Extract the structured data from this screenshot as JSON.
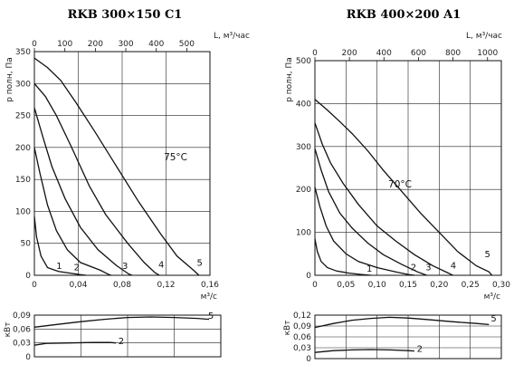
{
  "chart_data": [
    {
      "type": "line",
      "title": "RKB 300×150 C1",
      "xlabel": "м³/с",
      "x2label": "L, м³/час",
      "ylabel": "p полн, Па",
      "xlim": [
        0,
        0.16
      ],
      "x2lim": [
        0,
        576
      ],
      "ylim": [
        0,
        350
      ],
      "xticks": [
        "0",
        "0,04",
        "0,08",
        "0,12",
        "0,16"
      ],
      "xtick_values": [
        0,
        0.04,
        0.08,
        0.12,
        0.16
      ],
      "x2ticks": [
        "0",
        "100",
        "200",
        "300",
        "400",
        "500"
      ],
      "x2tick_values": [
        0,
        100,
        200,
        300,
        400,
        500
      ],
      "yticks": [
        "0",
        "50",
        "100",
        "150",
        "200",
        "250",
        "300",
        "350"
      ],
      "ytick_values": [
        0,
        50,
        100,
        150,
        200,
        250,
        300,
        350
      ],
      "grid": true,
      "annotation": "75°C",
      "annotation_at": [
        0.118,
        180
      ],
      "series": [
        {
          "name": "1",
          "label_at": [
            0.02,
            10
          ],
          "points": [
            [
              0,
              92
            ],
            [
              0.002,
              60
            ],
            [
              0.006,
              30
            ],
            [
              0.012,
              12
            ],
            [
              0.022,
              6
            ],
            [
              0.034,
              3
            ],
            [
              0.042,
              1
            ],
            [
              0.047,
              0
            ]
          ]
        },
        {
          "name": "2",
          "label_at": [
            0.036,
            8
          ],
          "points": [
            [
              0,
              200
            ],
            [
              0.005,
              160
            ],
            [
              0.012,
              110
            ],
            [
              0.02,
              70
            ],
            [
              0.03,
              40
            ],
            [
              0.042,
              20
            ],
            [
              0.06,
              8
            ],
            [
              0.068,
              1
            ],
            [
              0.07,
              0
            ]
          ]
        },
        {
          "name": "3",
          "label_at": [
            0.08,
            10
          ],
          "points": [
            [
              0,
              262
            ],
            [
              0.008,
              215
            ],
            [
              0.016,
              170
            ],
            [
              0.028,
              120
            ],
            [
              0.042,
              75
            ],
            [
              0.058,
              40
            ],
            [
              0.075,
              15
            ],
            [
              0.086,
              2
            ],
            [
              0.089,
              0
            ]
          ]
        },
        {
          "name": "4",
          "label_at": [
            0.113,
            12
          ],
          "points": [
            [
              0,
              300
            ],
            [
              0.01,
              280
            ],
            [
              0.02,
              250
            ],
            [
              0.034,
              200
            ],
            [
              0.05,
              140
            ],
            [
              0.065,
              95
            ],
            [
              0.085,
              50
            ],
            [
              0.1,
              20
            ],
            [
              0.11,
              4
            ],
            [
              0.114,
              0
            ]
          ]
        },
        {
          "name": "5",
          "label_at": [
            0.148,
            15
          ],
          "points": [
            [
              0,
              340
            ],
            [
              0.012,
              325
            ],
            [
              0.024,
              305
            ],
            [
              0.038,
              270
            ],
            [
              0.055,
              225
            ],
            [
              0.075,
              170
            ],
            [
              0.095,
              115
            ],
            [
              0.115,
              65
            ],
            [
              0.13,
              30
            ],
            [
              0.145,
              8
            ],
            [
              0.15,
              0
            ]
          ]
        }
      ]
    },
    {
      "type": "line",
      "xlim": [
        0,
        0.16
      ],
      "ylabel": "кВт",
      "ylim": [
        0,
        0.09
      ],
      "yticks": [
        "0",
        "0,03",
        "0,06",
        "0,09"
      ],
      "ytick_values": [
        0,
        0.03,
        0.06,
        0.09
      ],
      "grid": true,
      "series": [
        {
          "name": "5",
          "label_at": [
            0.149,
            0.082
          ],
          "points": [
            [
              0,
              0.064
            ],
            [
              0.02,
              0.07
            ],
            [
              0.04,
              0.076
            ],
            [
              0.06,
              0.081
            ],
            [
              0.08,
              0.085
            ],
            [
              0.1,
              0.086
            ],
            [
              0.12,
              0.085
            ],
            [
              0.14,
              0.083
            ],
            [
              0.15,
              0.081
            ]
          ]
        },
        {
          "name": "2",
          "label_at": [
            0.072,
            0.027
          ],
          "points": [
            [
              0,
              0.025
            ],
            [
              0.01,
              0.029
            ],
            [
              0.03,
              0.03
            ],
            [
              0.05,
              0.031
            ],
            [
              0.065,
              0.031
            ],
            [
              0.07,
              0.03
            ]
          ]
        }
      ]
    },
    {
      "type": "line",
      "title": "RKB 400×200 A1",
      "xlabel": "м³/с",
      "x2label": "L, м³/час",
      "ylabel": "p полн, Па",
      "xlim": [
        0,
        0.3
      ],
      "x2lim": [
        0,
        1080
      ],
      "ylim": [
        0,
        500
      ],
      "xticks": [
        "0",
        "0,05",
        "0,10",
        "0,15",
        "0,20",
        "0,25",
        "0,30"
      ],
      "xtick_values": [
        0,
        0.05,
        0.1,
        0.15,
        0.2,
        0.25,
        0.3
      ],
      "x2ticks": [
        "0",
        "200",
        "400",
        "600",
        "800",
        "1000"
      ],
      "x2tick_values": [
        0,
        200,
        400,
        600,
        800,
        1000
      ],
      "yticks": [
        "0",
        "100",
        "200",
        "300",
        "400",
        "500"
      ],
      "ytick_values": [
        0,
        100,
        200,
        300,
        400,
        500
      ],
      "grid": true,
      "annotation": "70°C",
      "annotation_at": [
        0.118,
        205
      ],
      "series": [
        {
          "name": "1",
          "label_at": [
            0.083,
            8
          ],
          "points": [
            [
              0,
              85
            ],
            [
              0.004,
              55
            ],
            [
              0.01,
              32
            ],
            [
              0.02,
              18
            ],
            [
              0.035,
              10
            ],
            [
              0.055,
              5
            ],
            [
              0.075,
              2
            ],
            [
              0.09,
              0
            ]
          ]
        },
        {
          "name": "2",
          "label_at": [
            0.154,
            12
          ],
          "points": [
            [
              0,
              205
            ],
            [
              0.008,
              160
            ],
            [
              0.018,
              115
            ],
            [
              0.03,
              80
            ],
            [
              0.05,
              50
            ],
            [
              0.07,
              32
            ],
            [
              0.1,
              18
            ],
            [
              0.13,
              8
            ],
            [
              0.15,
              2
            ],
            [
              0.16,
              0
            ]
          ]
        },
        {
          "name": "3",
          "label_at": [
            0.178,
            12
          ],
          "points": [
            [
              0,
              295
            ],
            [
              0.01,
              245
            ],
            [
              0.022,
              195
            ],
            [
              0.04,
              145
            ],
            [
              0.06,
              110
            ],
            [
              0.085,
              75
            ],
            [
              0.11,
              48
            ],
            [
              0.14,
              25
            ],
            [
              0.165,
              8
            ],
            [
              0.18,
              0
            ]
          ]
        },
        {
          "name": "4",
          "label_at": [
            0.218,
            16
          ],
          "points": [
            [
              0,
              355
            ],
            [
              0.012,
              305
            ],
            [
              0.025,
              262
            ],
            [
              0.045,
              215
            ],
            [
              0.07,
              165
            ],
            [
              0.1,
              115
            ],
            [
              0.13,
              80
            ],
            [
              0.16,
              48
            ],
            [
              0.19,
              22
            ],
            [
              0.215,
              5
            ],
            [
              0.222,
              0
            ]
          ]
        },
        {
          "name": "5",
          "label_at": [
            0.273,
            42
          ],
          "points": [
            [
              0,
              410
            ],
            [
              0.02,
              385
            ],
            [
              0.04,
              358
            ],
            [
              0.06,
              330
            ],
            [
              0.085,
              290
            ],
            [
              0.11,
              245
            ],
            [
              0.14,
              195
            ],
            [
              0.17,
              145
            ],
            [
              0.2,
              100
            ],
            [
              0.23,
              55
            ],
            [
              0.26,
              22
            ],
            [
              0.28,
              8
            ],
            [
              0.285,
              0
            ]
          ]
        }
      ]
    },
    {
      "type": "line",
      "xlim": [
        0,
        0.3
      ],
      "ylabel": "кВт",
      "ylim": [
        0,
        0.12
      ],
      "yticks": [
        "0",
        "0,03",
        "0,06",
        "0,09",
        "0,12"
      ],
      "ytick_values": [
        0,
        0.03,
        0.06,
        0.09,
        0.12
      ],
      "grid": true,
      "series": [
        {
          "name": "5",
          "label_at": [
            0.283,
            0.102
          ],
          "points": [
            [
              0,
              0.086
            ],
            [
              0.03,
              0.097
            ],
            [
              0.06,
              0.106
            ],
            [
              0.09,
              0.111
            ],
            [
              0.12,
              0.114
            ],
            [
              0.15,
              0.112
            ],
            [
              0.18,
              0.108
            ],
            [
              0.22,
              0.102
            ],
            [
              0.26,
              0.097
            ],
            [
              0.28,
              0.094
            ]
          ]
        },
        {
          "name": "2",
          "label_at": [
            0.164,
            0.019
          ],
          "points": [
            [
              0,
              0.017
            ],
            [
              0.03,
              0.022
            ],
            [
              0.06,
              0.024
            ],
            [
              0.09,
              0.025
            ],
            [
              0.12,
              0.024
            ],
            [
              0.15,
              0.022
            ],
            [
              0.16,
              0.021
            ]
          ]
        }
      ]
    }
  ]
}
